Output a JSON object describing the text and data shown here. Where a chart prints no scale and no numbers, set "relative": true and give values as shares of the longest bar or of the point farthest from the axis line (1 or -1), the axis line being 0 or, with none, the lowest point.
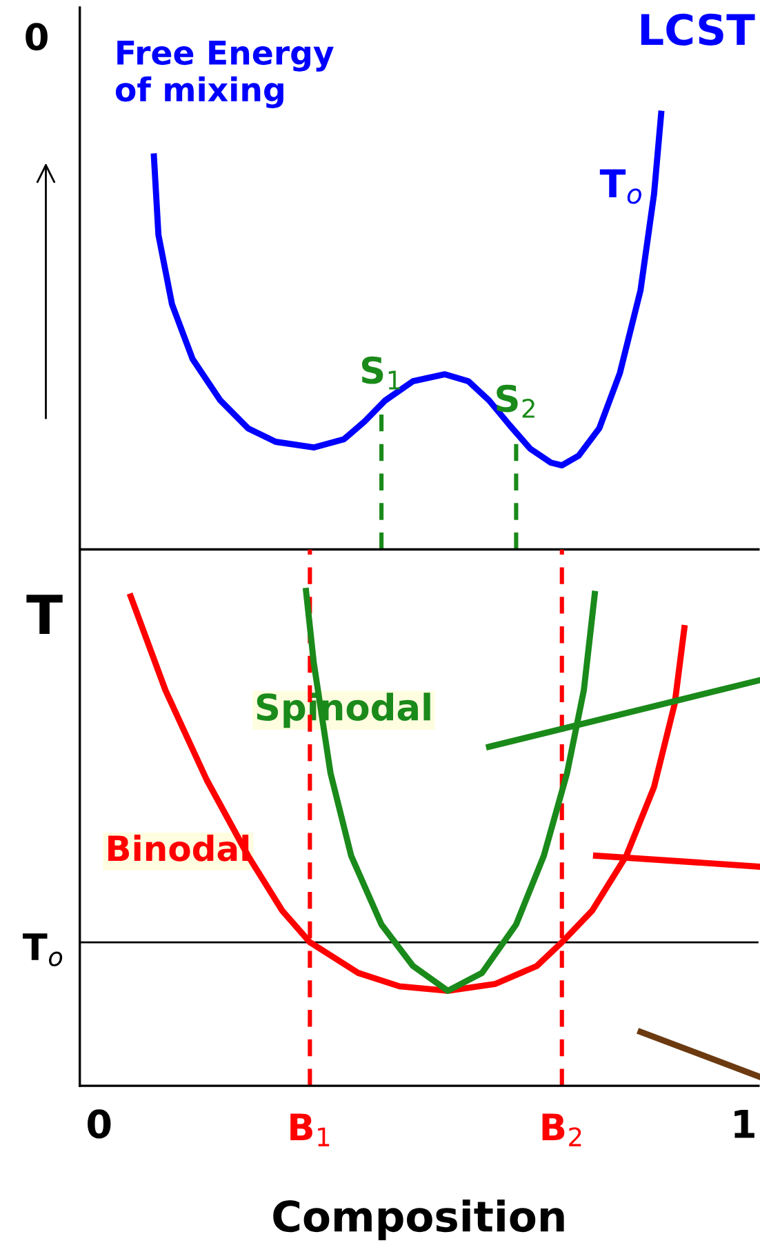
{
  "chart_data": [
    {
      "type": "line",
      "title": "LCST",
      "relative": true,
      "xlim": [
        -0.03,
        1.023
      ],
      "xticks": [
        0,
        1
      ],
      "tick_labels": false,
      "grid": false,
      "legend": false,
      "marker": "none",
      "line_style": "solid",
      "series": [
        {
          "name": "Free Energy\nof mixing",
          "color": "#0000ff",
          "x": [
            0.085,
            0.092,
            0.113,
            0.145,
            0.188,
            0.231,
            0.274,
            0.333,
            0.38,
            0.412,
            0.444,
            0.487,
            0.536,
            0.573,
            0.605,
            0.637,
            0.669,
            0.701,
            0.718,
            0.744,
            0.776,
            0.808,
            0.84,
            0.861,
            0.872
          ],
          "values": [
            0.902,
            0.722,
            0.563,
            0.437,
            0.342,
            0.278,
            0.247,
            0.234,
            0.253,
            0.294,
            0.342,
            0.386,
            0.402,
            0.386,
            0.342,
            0.285,
            0.231,
            0.199,
            0.193,
            0.215,
            0.278,
            0.405,
            0.595,
            0.816,
            1.0
          ]
        }
      ],
      "ref_lines": [
        {
          "axis": "x",
          "value": 0.438,
          "label": "S$_{1}$",
          "color": "#1a8a1a",
          "line_style": "dashed"
        },
        {
          "axis": "x",
          "value": 0.647,
          "label": "S$_{2}$",
          "color": "#1a8a1a",
          "line_style": "dashed"
        }
      ],
      "annotations": [
        "0",
        {
          "text": "T$_{o}$",
          "x": 0.845,
          "y": 0.79
        }
      ]
    },
    {
      "type": "line",
      "xlabel": "Composition",
      "ylabel": "T",
      "relative": true,
      "xlim": [
        -0.03,
        1.023
      ],
      "xticks": [
        0,
        1
      ],
      "tick_labels": "x",
      "grid": false,
      "legend": false,
      "marker": "none",
      "line_style": "solid",
      "series": [
        {
          "name": "Binodal",
          "color": "#ff0000",
          "x": [
            0.049,
            0.103,
            0.167,
            0.231,
            0.284,
            0.327,
            0.402,
            0.466,
            0.541,
            0.615,
            0.679,
            0.718,
            0.765,
            0.818,
            0.861,
            0.893,
            0.908
          ],
          "values": [
            0.989,
            0.799,
            0.618,
            0.465,
            0.354,
            0.29,
            0.228,
            0.201,
            0.192,
            0.206,
            0.242,
            0.29,
            0.354,
            0.465,
            0.604,
            0.772,
            0.925
          ]
        },
        {
          "name": "Spinodal",
          "color": "#1a8a1a",
          "x": [
            0.321,
            0.333,
            0.359,
            0.391,
            0.438,
            0.487,
            0.541,
            0.594,
            0.647,
            0.69,
            0.726,
            0.752,
            0.769
          ],
          "values": [
            1.0,
            0.855,
            0.632,
            0.465,
            0.326,
            0.242,
            0.192,
            0.228,
            0.326,
            0.465,
            0.632,
            0.799,
            0.994
          ]
        },
        {
          "color": "#1a8a1a",
          "x": [
            0.605,
            1.023
          ],
          "values": [
            0.685,
            0.819
          ]
        },
        {
          "color": "#ff0000",
          "x": [
            0.771,
            1.023
          ],
          "values": [
            0.465,
            0.443
          ]
        },
        {
          "color": "#6b3a10",
          "x": [
            0.84,
            1.023
          ],
          "values": [
            0.109,
            0.019
          ]
        }
      ],
      "ref_lines": [
        {
          "axis": "y",
          "value": 0.29,
          "label": "T$_{o}$",
          "color": "#000000",
          "line_style": "solid"
        },
        {
          "axis": "x",
          "value": 0.327,
          "label": "B$_{1}$",
          "color": "#ff0000",
          "line_style": "dashed"
        },
        {
          "axis": "x",
          "value": 0.718,
          "label": "B$_{2}$",
          "color": "#ff0000",
          "line_style": "dashed"
        }
      ]
    }
  ]
}
